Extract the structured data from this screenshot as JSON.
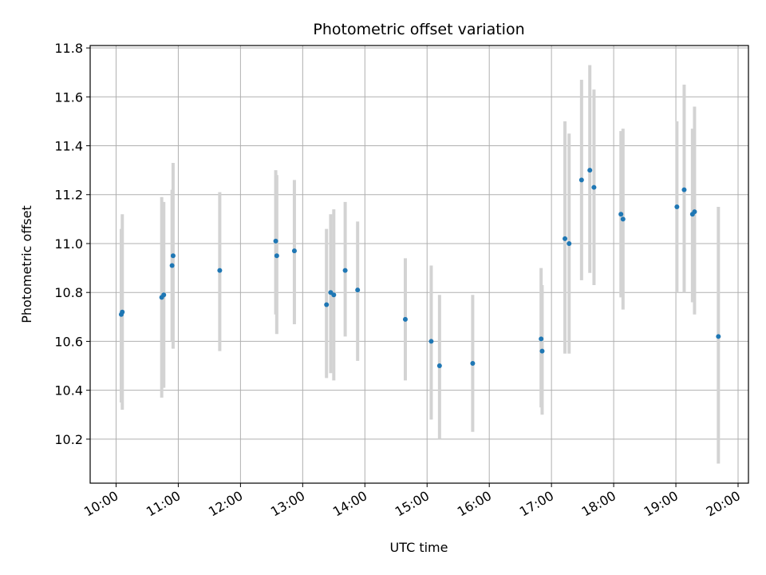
{
  "chart_data": {
    "type": "scatter",
    "title": "Photometric offset variation",
    "xlabel": "UTC time",
    "ylabel": "Photometric offset",
    "xlim": [
      "09:35",
      "20:10"
    ],
    "ylim": [
      10.02,
      11.81
    ],
    "x_ticks": [
      "10:00",
      "11:00",
      "12:00",
      "13:00",
      "14:00",
      "15:00",
      "16:00",
      "17:00",
      "18:00",
      "19:00",
      "20:00"
    ],
    "y_ticks": [
      "10.2",
      "10.4",
      "10.6",
      "10.8",
      "11.0",
      "11.2",
      "11.4",
      "11.6",
      "11.8"
    ],
    "grid": true,
    "marker_color": "#1f77b4",
    "errorbar_color": "#d3d3d3",
    "points": [
      {
        "time": "10:05",
        "y": 10.71,
        "err_low": 10.35,
        "err_high": 11.06
      },
      {
        "time": "10:06",
        "y": 10.72,
        "err_low": 10.32,
        "err_high": 11.12
      },
      {
        "time": "10:44",
        "y": 10.78,
        "err_low": 10.37,
        "err_high": 11.19
      },
      {
        "time": "10:46",
        "y": 10.79,
        "err_low": 10.41,
        "err_high": 11.17
      },
      {
        "time": "10:54",
        "y": 10.91,
        "err_low": 10.6,
        "err_high": 11.22
      },
      {
        "time": "10:55",
        "y": 10.95,
        "err_low": 10.57,
        "err_high": 11.33
      },
      {
        "time": "11:40",
        "y": 10.89,
        "err_low": 10.56,
        "err_high": 11.21
      },
      {
        "time": "12:34",
        "y": 11.01,
        "err_low": 10.71,
        "err_high": 11.3
      },
      {
        "time": "12:35",
        "y": 10.95,
        "err_low": 10.63,
        "err_high": 11.28
      },
      {
        "time": "12:52",
        "y": 10.97,
        "err_low": 10.67,
        "err_high": 11.26
      },
      {
        "time": "13:23",
        "y": 10.75,
        "err_low": 10.45,
        "err_high": 11.06
      },
      {
        "time": "13:27",
        "y": 10.8,
        "err_low": 10.47,
        "err_high": 11.12
      },
      {
        "time": "13:30",
        "y": 10.79,
        "err_low": 10.44,
        "err_high": 11.14
      },
      {
        "time": "13:41",
        "y": 10.89,
        "err_low": 10.62,
        "err_high": 11.17
      },
      {
        "time": "13:53",
        "y": 10.81,
        "err_low": 10.52,
        "err_high": 11.09
      },
      {
        "time": "14:39",
        "y": 10.69,
        "err_low": 10.44,
        "err_high": 10.94
      },
      {
        "time": "15:04",
        "y": 10.6,
        "err_low": 10.28,
        "err_high": 10.91
      },
      {
        "time": "15:12",
        "y": 10.5,
        "err_low": 10.2,
        "err_high": 10.79
      },
      {
        "time": "15:44",
        "y": 10.51,
        "err_low": 10.23,
        "err_high": 10.79
      },
      {
        "time": "16:50",
        "y": 10.61,
        "err_low": 10.33,
        "err_high": 10.9
      },
      {
        "time": "16:51",
        "y": 10.56,
        "err_low": 10.3,
        "err_high": 10.83
      },
      {
        "time": "17:13",
        "y": 11.02,
        "err_low": 10.55,
        "err_high": 11.5
      },
      {
        "time": "17:17",
        "y": 11.0,
        "err_low": 10.55,
        "err_high": 11.45
      },
      {
        "time": "17:29",
        "y": 11.26,
        "err_low": 10.85,
        "err_high": 11.67
      },
      {
        "time": "17:37",
        "y": 11.3,
        "err_low": 10.88,
        "err_high": 11.73
      },
      {
        "time": "17:41",
        "y": 11.23,
        "err_low": 10.83,
        "err_high": 11.63
      },
      {
        "time": "18:07",
        "y": 11.12,
        "err_low": 10.78,
        "err_high": 11.46
      },
      {
        "time": "18:09",
        "y": 11.1,
        "err_low": 10.73,
        "err_high": 11.47
      },
      {
        "time": "19:01",
        "y": 11.15,
        "err_low": 10.8,
        "err_high": 11.5
      },
      {
        "time": "19:08",
        "y": 11.22,
        "err_low": 10.8,
        "err_high": 11.65
      },
      {
        "time": "19:16",
        "y": 11.12,
        "err_low": 10.76,
        "err_high": 11.47
      },
      {
        "time": "19:18",
        "y": 11.13,
        "err_low": 10.71,
        "err_high": 11.56
      },
      {
        "time": "19:41",
        "y": 10.62,
        "err_low": 10.1,
        "err_high": 11.15
      }
    ]
  }
}
